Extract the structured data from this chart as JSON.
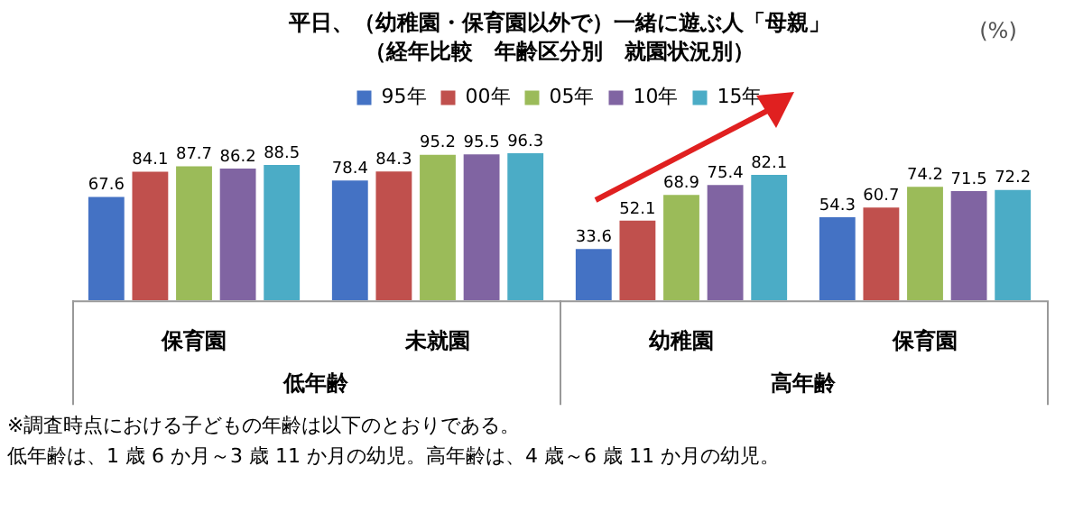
{
  "chart_data": {
    "type": "bar",
    "title": "平日、（幼稚園・保育園以外で）一緒に遊ぶ人「母親」",
    "subtitle": "（経年比較　年齢区分別　就園状況別）",
    "categories": [
      "保育園",
      "未就園",
      "幼稚園",
      "保育園"
    ],
    "series": [
      {
        "name": "95年",
        "color": "#4472c4",
        "values": [
          67.6,
          78.4,
          33.6,
          54.3
        ]
      },
      {
        "name": "00年",
        "color": "#c0504d",
        "values": [
          84.1,
          84.3,
          52.1,
          60.7
        ]
      },
      {
        "name": "05年",
        "color": "#9bbb59",
        "values": [
          87.7,
          95.2,
          68.9,
          74.2
        ]
      },
      {
        "name": "10年",
        "color": "#8064a2",
        "values": [
          86.2,
          95.5,
          75.4,
          71.5
        ]
      },
      {
        "name": "15年",
        "color": "#4bacc6",
        "values": [
          88.5,
          96.3,
          82.1,
          72.2
        ]
      }
    ],
    "data_labels": true,
    "legend": "top",
    "grid": false,
    "tick_labels": "x",
    "annotations": [
      "(%)",
      "低年齢",
      "高年齢",
      "※調査時点における子どもの年齢は以下のとおりである。",
      "低年齢は、1 歳 6 か月～3 歳 11 か月の幼児。高年齢は、4 歳～6 歳 11 か月の幼児。"
    ]
  }
}
